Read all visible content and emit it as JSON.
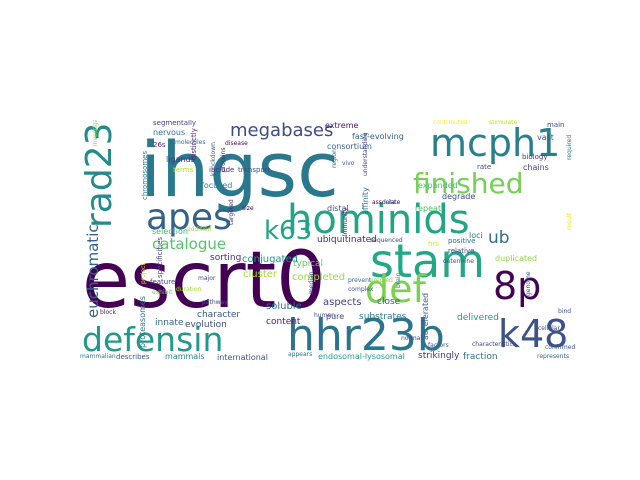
{
  "words": [
    {
      "text": "escrt0",
      "color": "#440154"
    },
    {
      "text": "ihgsc",
      "color": "#2a788e"
    },
    {
      "text": "hhr23b",
      "color": "#2c738e"
    },
    {
      "text": "hominids",
      "color": "#21a585"
    },
    {
      "text": "stam",
      "color": "#22a884"
    },
    {
      "text": "def",
      "color": "#7ad151"
    },
    {
      "text": "defensin",
      "color": "#1f9a8a"
    },
    {
      "text": "mcph1",
      "color": "#27808e"
    },
    {
      "text": "apes",
      "color": "#33638d"
    },
    {
      "text": "rad23",
      "color": "#238a8d"
    },
    {
      "text": "k48",
      "color": "#3b528b"
    },
    {
      "text": "8p",
      "color": "#440154"
    },
    {
      "text": "finished",
      "color": "#75d054"
    },
    {
      "text": "k63",
      "color": "#20a486"
    },
    {
      "text": "megabases",
      "color": "#3e4a89"
    },
    {
      "text": "catalogue",
      "color": "#52c569"
    },
    {
      "text": "euchromatic",
      "color": "#34618d"
    },
    {
      "text": "ub",
      "color": "#2e6e8e"
    },
    {
      "text": "ubiquitinated",
      "color": "#482878"
    },
    {
      "text": "conjugated",
      "color": "#1f968b"
    },
    {
      "text": "typical",
      "color": "#5ec962"
    },
    {
      "text": "selection",
      "color": "#40bd72"
    },
    {
      "text": "sorting",
      "color": "#472c7a"
    },
    {
      "text": "cluster",
      "color": "#a5db36"
    },
    {
      "text": "completed",
      "color": "#9dd93b"
    },
    {
      "text": "aspects",
      "color": "#433e85"
    },
    {
      "text": "soluble",
      "color": "#2d708e"
    },
    {
      "text": "close",
      "color": "#3b528b"
    },
    {
      "text": "pure",
      "color": "#404688"
    },
    {
      "text": "substrates",
      "color": "#2a768e"
    },
    {
      "text": "delivered",
      "color": "#1e9c89"
    },
    {
      "text": "evolution",
      "color": "#3e4c8a"
    },
    {
      "text": "content",
      "color": "#482173"
    },
    {
      "text": "innate",
      "color": "#31688e"
    },
    {
      "text": "character",
      "color": "#3a538b"
    },
    {
      "text": "proteasomes",
      "color": "#2c738e"
    },
    {
      "text": "mammals",
      "color": "#25848e"
    },
    {
      "text": "describes",
      "color": "#39558c"
    },
    {
      "text": "international",
      "color": "#3b528b"
    },
    {
      "text": "endosomal-lysosomal",
      "color": "#1f9e89"
    },
    {
      "text": "strikingly",
      "color": "#46327e"
    },
    {
      "text": "fraction",
      "color": "#2d718e"
    },
    {
      "text": "accelerated",
      "color": "#39568c"
    },
    {
      "text": "degrade",
      "color": "#3f4788"
    },
    {
      "text": "expanded",
      "color": "#4ac16d"
    },
    {
      "text": "repeat",
      "color": "#48c16e"
    },
    {
      "text": "fast-evolving",
      "color": "#355f8d"
    },
    {
      "text": "extreme",
      "color": "#471063"
    },
    {
      "text": "consortium",
      "color": "#31688e"
    },
    {
      "text": "distal",
      "color": "#3b528b"
    },
    {
      "text": "affinity",
      "color": "#2c738e"
    },
    {
      "text": "segmentally",
      "color": "#414487"
    },
    {
      "text": "nervous",
      "color": "#2c728e"
    },
    {
      "text": "ligands",
      "color": "#453882"
    },
    {
      "text": "focused",
      "color": "#26828e"
    },
    {
      "text": "terms",
      "color": "#b5de2b"
    },
    {
      "text": "duplicated",
      "color": "#8fd744"
    },
    {
      "text": "chains",
      "color": "#414487"
    },
    {
      "text": "vast",
      "color": "#38598c"
    },
    {
      "text": "main",
      "color": "#3b518b"
    },
    {
      "text": "loci",
      "color": "#2a778e"
    },
    {
      "text": "rate",
      "color": "#414487"
    },
    {
      "text": "positive",
      "color": "#2c728e"
    },
    {
      "text": "relative",
      "color": "#3e4a89"
    },
    {
      "text": "biology",
      "color": "#46337f"
    },
    {
      "text": "chromosomes",
      "color": "#27808e"
    },
    {
      "text": "specificities",
      "color": "#433e85"
    },
    {
      "text": "contributed",
      "color": "#fde725"
    },
    {
      "text": "stimulate",
      "color": "#b8de29"
    },
    {
      "text": "required",
      "color": "#2a788e"
    },
    {
      "text": "confirmed",
      "color": "#3b528b"
    },
    {
      "text": "represents",
      "color": "#33638d"
    },
    {
      "text": "cellular",
      "color": "#3f4889"
    },
    {
      "text": "bind",
      "color": "#3b528b"
    },
    {
      "text": "feature",
      "color": "#424086"
    },
    {
      "text": "mammalian",
      "color": "#2b758e"
    },
    {
      "text": "include",
      "color": "#46307e"
    },
    {
      "text": "transport",
      "color": "#3d4d8a"
    },
    {
      "text": "26s",
      "color": "#472a7a"
    },
    {
      "text": "molecules",
      "color": "#2f6c8e"
    },
    {
      "text": "distinctly",
      "color": "#482475"
    },
    {
      "text": "associate",
      "color": "#440154"
    },
    {
      "text": "sequenced",
      "color": "#3e4a89"
    },
    {
      "text": "prevent",
      "color": "#2f6b8e"
    },
    {
      "text": "complex",
      "color": "#3a548c"
    },
    {
      "text": "human",
      "color": "#3e4989"
    },
    {
      "text": "normal",
      "color": "#404688"
    },
    {
      "text": "brain",
      "color": "#29798e"
    },
    {
      "text": "median",
      "color": "#3e4c8a"
    },
    {
      "text": "immunity",
      "color": "#472d7b"
    },
    {
      "text": "determine",
      "color": "#3b518b"
    },
    {
      "text": "genome",
      "color": "#3d4e8a"
    },
    {
      "text": "factors",
      "color": "#38588c"
    },
    {
      "text": "characteristics",
      "color": "#414487"
    },
    {
      "text": "appears",
      "color": "#2b758e"
    },
    {
      "text": "erected",
      "color": "#8ed645"
    },
    {
      "text": "hrs",
      "color": "#d8e219"
    },
    {
      "text": "block",
      "color": "#481a6c"
    },
    {
      "text": "exhibit",
      "color": "#70cf57"
    },
    {
      "text": "pathway",
      "color": "#3d4e8a"
    },
    {
      "text": "major",
      "color": "#3d4d8a"
    },
    {
      "text": "size",
      "color": "#440154"
    },
    {
      "text": "disease",
      "color": "#46085c"
    },
    {
      "text": "vivo",
      "color": "#3c4f8a"
    },
    {
      "text": "region",
      "color": "#2e6d8e"
    },
    {
      "text": "knockdown",
      "color": "#365d8d"
    },
    {
      "text": "proteins",
      "color": "#46327e"
    },
    {
      "text": "understanding",
      "color": "#433e85"
    },
    {
      "text": "data",
      "color": "#3b528b"
    },
    {
      "text": "addition",
      "color": "#addc30"
    },
    {
      "text": "duration",
      "color": "#a2da37"
    },
    {
      "text": "targeted",
      "color": "#482878"
    },
    {
      "text": "project",
      "color": "#d0e11c"
    },
    {
      "text": "investigated",
      "color": "#86d549"
    },
    {
      "text": "result",
      "color": "#f1e51d"
    }
  ]
}
